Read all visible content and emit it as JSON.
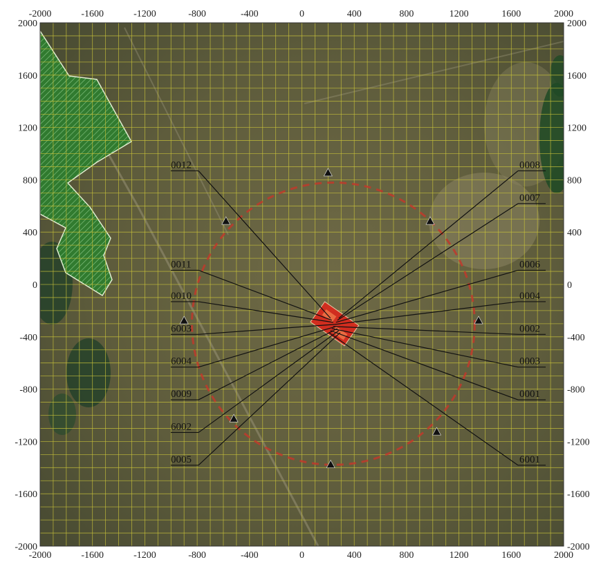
{
  "axes": {
    "x_ticks": [
      "-2000",
      "-1600",
      "-1200",
      "-800",
      "-400",
      "0",
      "400",
      "800",
      "1200",
      "1600",
      "2000"
    ],
    "y_ticks": [
      "2000",
      "1600",
      "1200",
      "800",
      "400",
      "0",
      "-400",
      "-800",
      "-1200",
      "-1600",
      "-2000"
    ],
    "x_range": [
      -2000,
      2000
    ],
    "y_range": [
      -2000,
      2000
    ],
    "grid_step": 100,
    "grid": true
  },
  "colors": {
    "grid": "#c8c23a",
    "ring": "#c0392b",
    "source_block": "#d9281c",
    "protected_area": "#2e8b2e"
  },
  "ring": {
    "center": [
      240,
      -300
    ],
    "radius": 1080
  },
  "source_block_center": [
    250,
    -300
  ],
  "receptors": [
    {
      "x": 200,
      "y": 850
    },
    {
      "x": -580,
      "y": 480
    },
    {
      "x": 980,
      "y": 480
    },
    {
      "x": 1350,
      "y": -280
    },
    {
      "x": -900,
      "y": -280
    },
    {
      "x": -520,
      "y": -1030
    },
    {
      "x": 1030,
      "y": -1130
    },
    {
      "x": 220,
      "y": -1380
    }
  ],
  "left_labels": [
    {
      "text": "0012",
      "y": 900
    },
    {
      "text": "0011",
      "y": 140
    },
    {
      "text": "0010",
      "y": -100
    },
    {
      "text": "6003",
      "y": -350
    },
    {
      "text": "6004",
      "y": -600
    },
    {
      "text": "0009",
      "y": -850
    },
    {
      "text": "6002",
      "y": -1100
    },
    {
      "text": "0005",
      "y": -1350
    }
  ],
  "right_labels": [
    {
      "text": "0008",
      "y": 900
    },
    {
      "text": "0007",
      "y": 650
    },
    {
      "text": "0006",
      "y": 140
    },
    {
      "text": "0004",
      "y": -100
    },
    {
      "text": "0002",
      "y": -350
    },
    {
      "text": "0003",
      "y": -600
    },
    {
      "text": "0001",
      "y": -850
    },
    {
      "text": "6001",
      "y": -1350
    }
  ]
}
